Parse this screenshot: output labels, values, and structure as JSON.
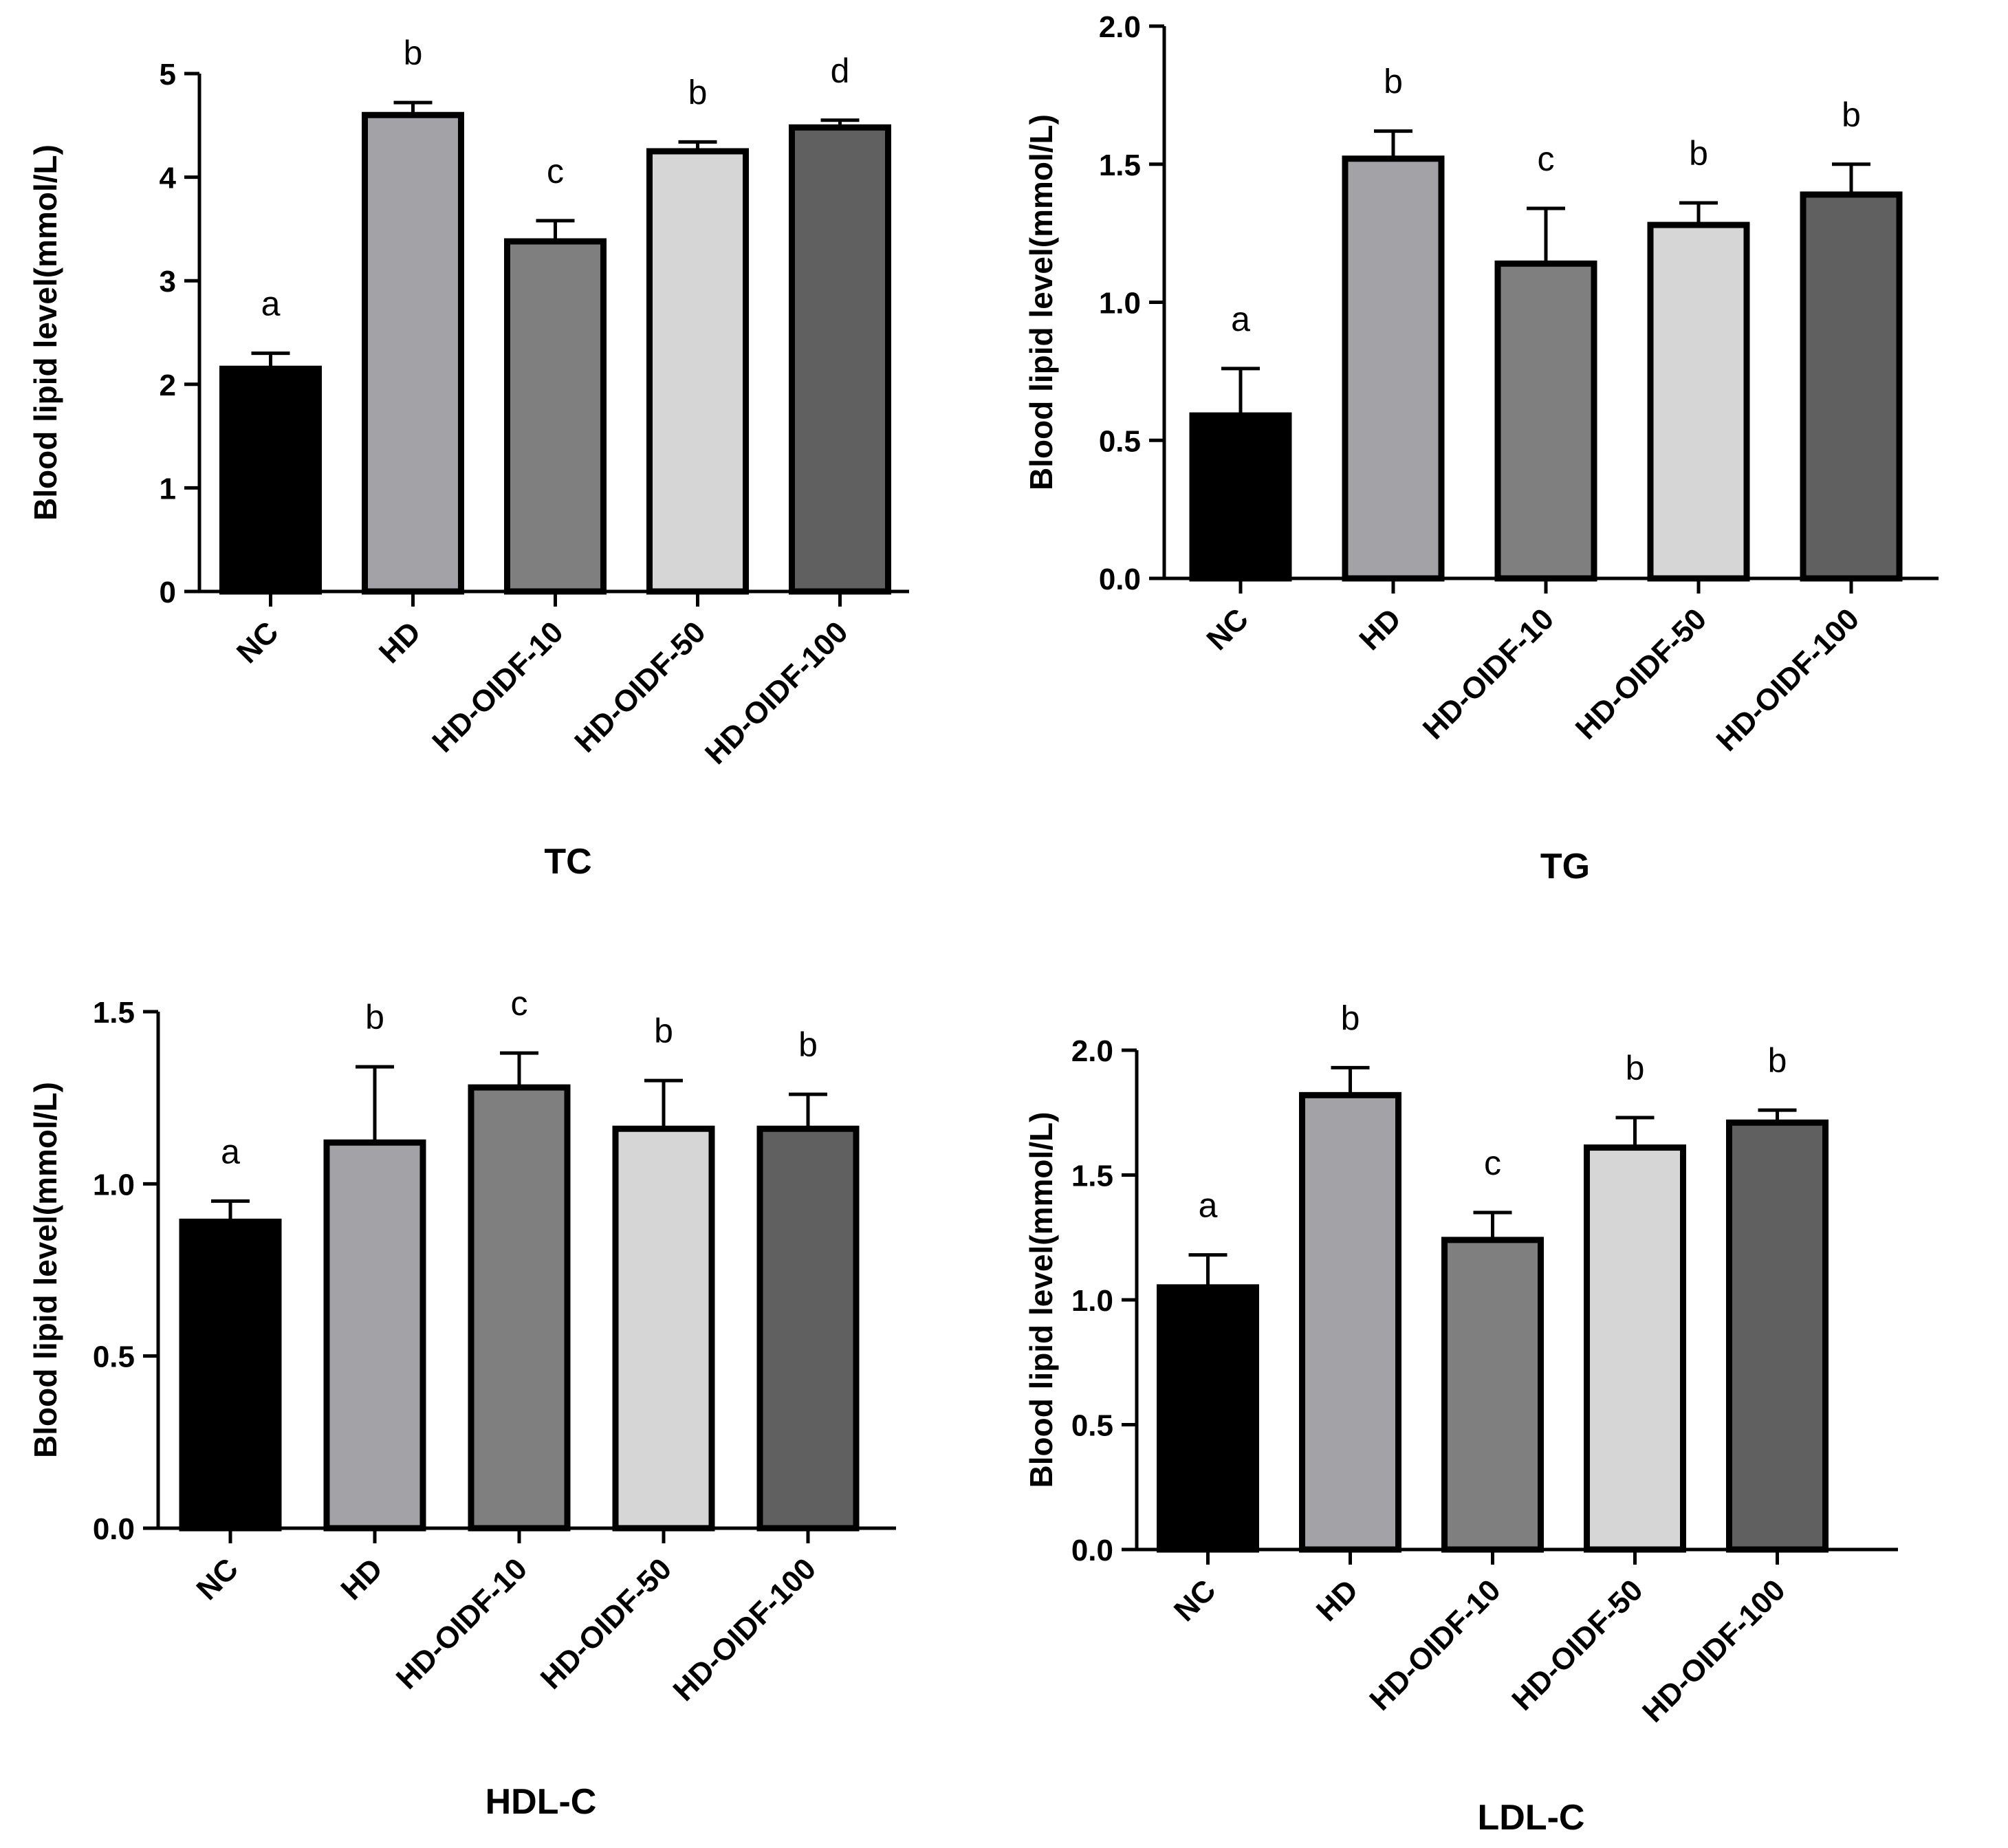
{
  "chart_data": [
    {
      "type": "bar",
      "title": "TC",
      "ylabel": "Blood lipid level(mmol/L)",
      "xlabel": "TC",
      "ylim": [
        0,
        5
      ],
      "yticks": [
        0,
        1,
        2,
        3,
        4,
        5
      ],
      "ytick_labels": [
        "0",
        "1",
        "2",
        "3",
        "4",
        "5"
      ],
      "categories": [
        "NC",
        "HD",
        "HD-OIDF-10",
        "HD-OIDF-50",
        "HD-OIDF-100"
      ],
      "values": [
        2.15,
        4.6,
        3.38,
        4.25,
        4.48
      ],
      "errors": [
        0.15,
        0.12,
        0.2,
        0.09,
        0.07
      ],
      "significance": [
        "a",
        "b",
        "c",
        "b",
        "d"
      ],
      "colors": [
        "#000000",
        "#a3a3a7",
        "#7f7f7f",
        "#d6d6d6",
        "#606060"
      ]
    },
    {
      "type": "bar",
      "title": "TG",
      "ylabel": "Blood lipid level(mmol/L)",
      "xlabel": "TG",
      "ylim": [
        0,
        2
      ],
      "yticks": [
        0,
        0.5,
        1,
        1.5,
        2
      ],
      "ytick_labels": [
        "0.0",
        "0.5",
        "1.0",
        "1.5",
        "2.0"
      ],
      "categories": [
        "NC",
        "HD",
        "HD-OIDF-10",
        "HD-OIDF-50",
        "HD-OIDF-100"
      ],
      "values": [
        0.59,
        1.52,
        1.14,
        1.28,
        1.39
      ],
      "errors": [
        0.17,
        0.1,
        0.2,
        0.08,
        0.11
      ],
      "significance": [
        "a",
        "b",
        "c",
        "b",
        "b"
      ],
      "colors": [
        "#000000",
        "#a3a3a7",
        "#7f7f7f",
        "#d6d6d6",
        "#606060"
      ]
    },
    {
      "type": "bar",
      "title": "HDL-C",
      "ylabel": "Blood lipid level(mmol/L)",
      "xlabel": "HDL-C",
      "ylim": [
        0,
        1.5
      ],
      "yticks": [
        0,
        0.5,
        1,
        1.5
      ],
      "ytick_labels": [
        "0.0",
        "0.5",
        "1.0",
        "1.5"
      ],
      "categories": [
        "NC",
        "HD",
        "HD-OIDF-10",
        "HD-OIDF-50",
        "HD-OIDF-100"
      ],
      "values": [
        0.89,
        1.12,
        1.28,
        1.16,
        1.16
      ],
      "errors": [
        0.06,
        0.22,
        0.1,
        0.14,
        0.1
      ],
      "significance": [
        "a",
        "b",
        "c",
        "b",
        "b"
      ],
      "colors": [
        "#000000",
        "#a3a3a7",
        "#7f7f7f",
        "#d6d6d6",
        "#606060"
      ]
    },
    {
      "type": "bar",
      "title": "LDL-C",
      "ylabel": "Blood lipid level(mmol/L)",
      "xlabel": "LDL-C",
      "ylim": [
        0,
        2
      ],
      "yticks": [
        0,
        0.5,
        1,
        1.5,
        2
      ],
      "ytick_labels": [
        "0.0",
        "0.5",
        "1.0",
        "1.5",
        "2.0"
      ],
      "categories": [
        "NC",
        "HD",
        "HD-OIDF-10",
        "HD-OIDF-50",
        "HD-OIDF-100"
      ],
      "values": [
        1.05,
        1.82,
        1.24,
        1.61,
        1.71
      ],
      "errors": [
        0.13,
        0.11,
        0.11,
        0.12,
        0.05
      ],
      "significance": [
        "a",
        "b",
        "c",
        "b",
        "b"
      ],
      "colors": [
        "#000000",
        "#a3a3a7",
        "#7f7f7f",
        "#d6d6d6",
        "#606060"
      ]
    }
  ]
}
